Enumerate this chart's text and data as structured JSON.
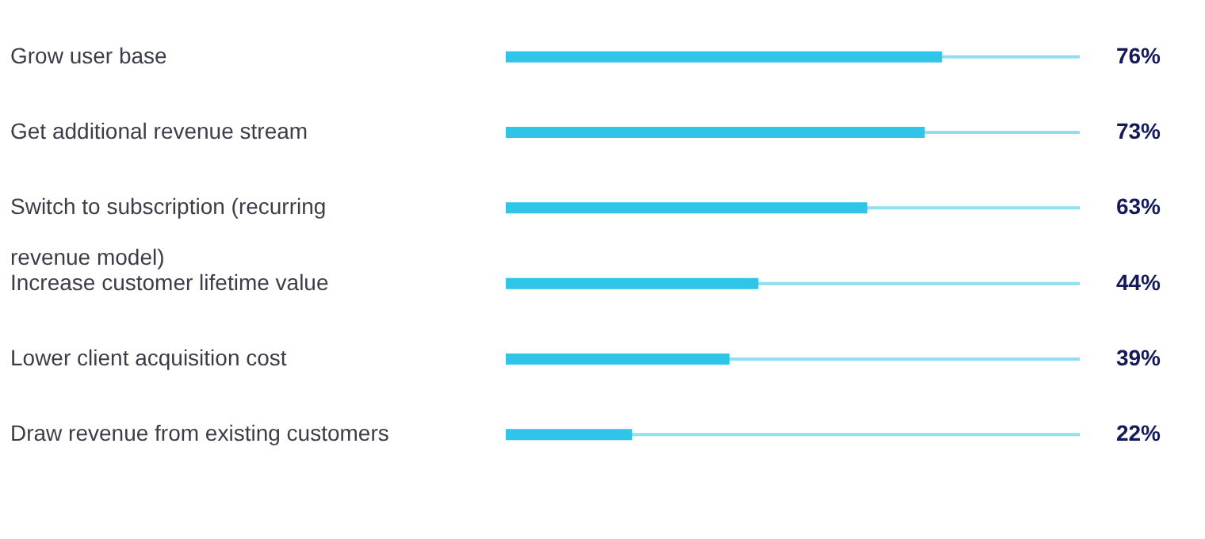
{
  "chart_data": {
    "type": "bar",
    "orientation": "horizontal",
    "categories": [
      "Grow user base",
      "Get additional revenue stream",
      "Switch to subscription (recurring revenue model)",
      "Increase customer lifetime value",
      "Lower client acquisition cost",
      "Draw revenue from existing customers"
    ],
    "values": [
      76,
      73,
      63,
      44,
      39,
      22
    ],
    "value_labels": [
      "76%",
      "73%",
      "63%",
      "44%",
      "39%",
      "22%"
    ],
    "color": "#2ec5e9",
    "xlim": [
      0,
      100
    ],
    "tick_labels": "y",
    "grid": "y"
  }
}
